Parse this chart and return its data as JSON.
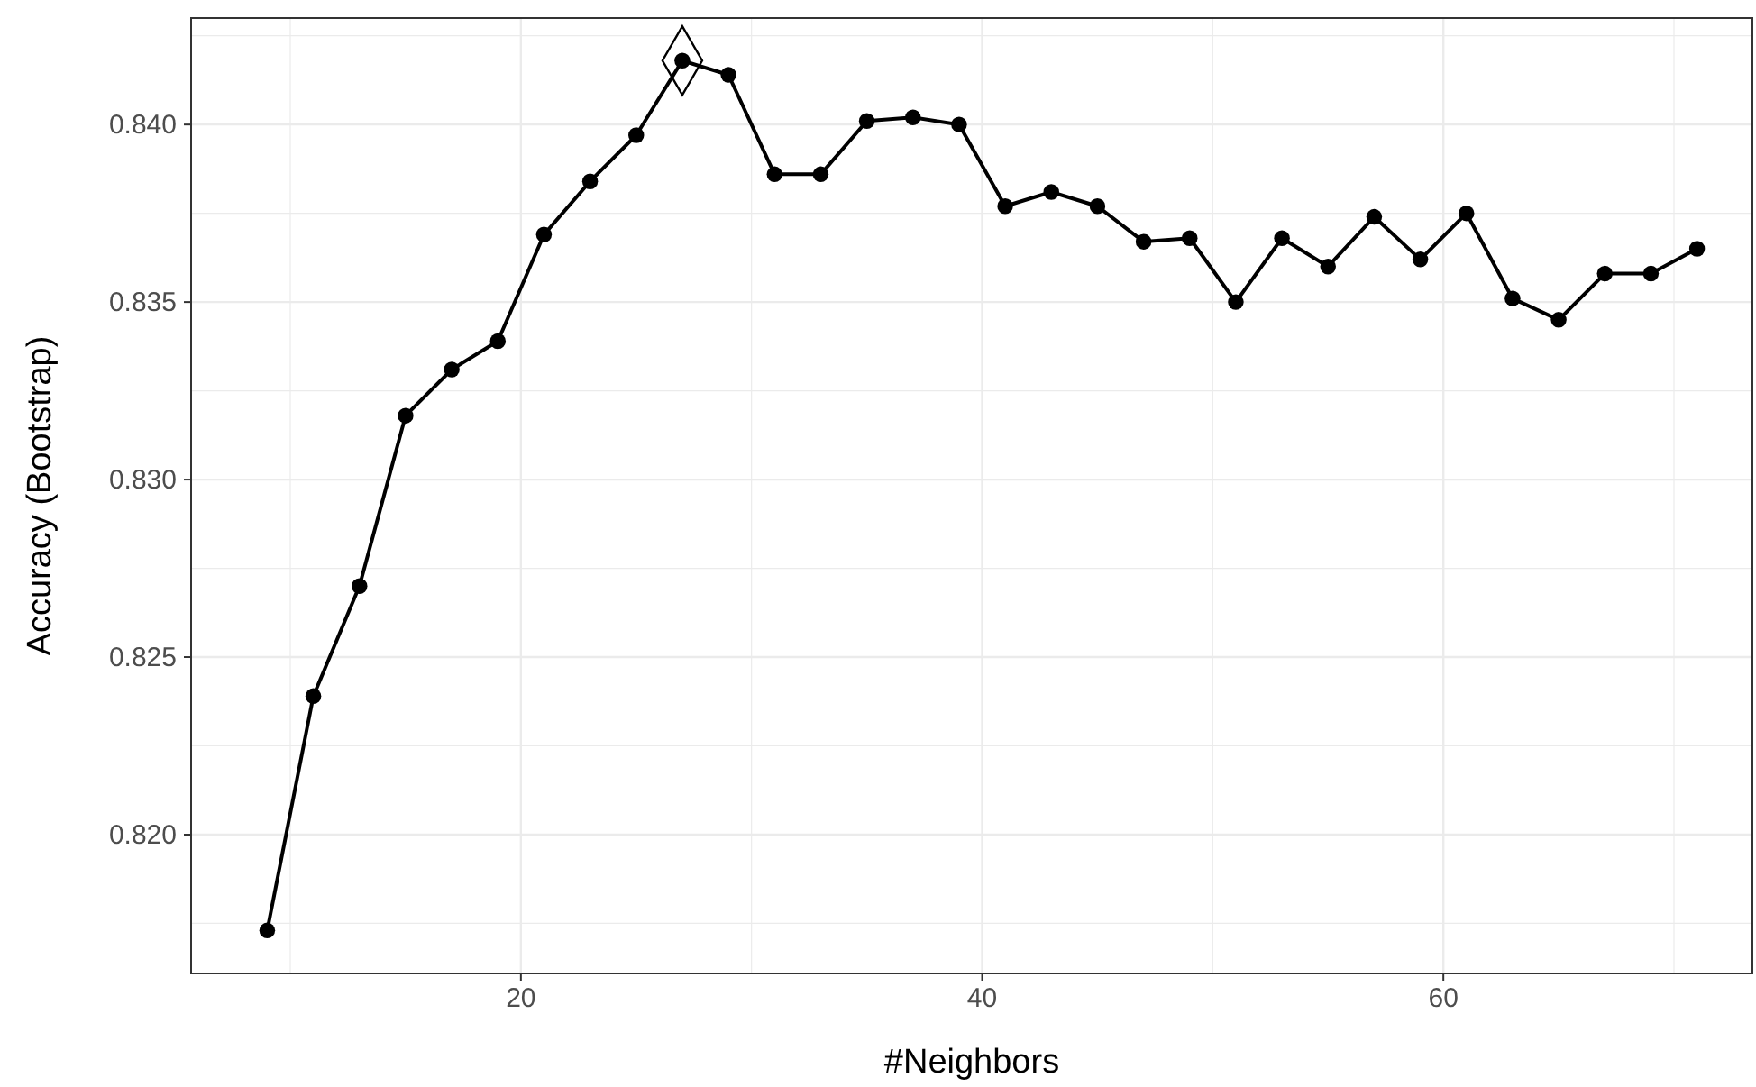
{
  "chart_data": {
    "type": "line",
    "xlabel": "#Neighbors",
    "ylabel": "Accuracy (Bootstrap)",
    "xlim": [
      5.7,
      73.4
    ],
    "xticks": [
      20,
      40,
      60
    ],
    "ylim": [
      0.81609,
      0.843
    ],
    "yticks": [
      {
        "value": 0.82,
        "label": "0.820"
      },
      {
        "value": 0.825,
        "label": "0.825"
      },
      {
        "value": 0.83,
        "label": "0.830"
      },
      {
        "value": 0.835,
        "label": "0.835"
      },
      {
        "value": 0.84,
        "label": "0.840"
      }
    ],
    "grid": true,
    "marker": "circle",
    "line_style": "solid",
    "series": [
      {
        "color": "#000000",
        "x": [
          9,
          11,
          13,
          15,
          17,
          19,
          21,
          23,
          25,
          27,
          29,
          31,
          33,
          35,
          37,
          39,
          41,
          43,
          45,
          47,
          49,
          51,
          53,
          55,
          57,
          59,
          61,
          63,
          65,
          67,
          69,
          71
        ],
        "values": [
          0.8173,
          0.8239,
          0.827,
          0.8318,
          0.8331,
          0.8339,
          0.8369,
          0.8384,
          0.8397,
          0.8418,
          0.8414,
          0.8386,
          0.8386,
          0.8401,
          0.8402,
          0.84,
          0.8377,
          0.8381,
          0.8377,
          0.8367,
          0.8368,
          0.835,
          0.8368,
          0.836,
          0.8374,
          0.8362,
          0.8375,
          0.8351,
          0.8345,
          0.8358,
          0.8358,
          0.8365
        ]
      },
      {
        "type": "scatter",
        "marker": "diamond",
        "color": "#000000",
        "x": [
          27
        ],
        "values": [
          0.8418
        ]
      }
    ]
  }
}
